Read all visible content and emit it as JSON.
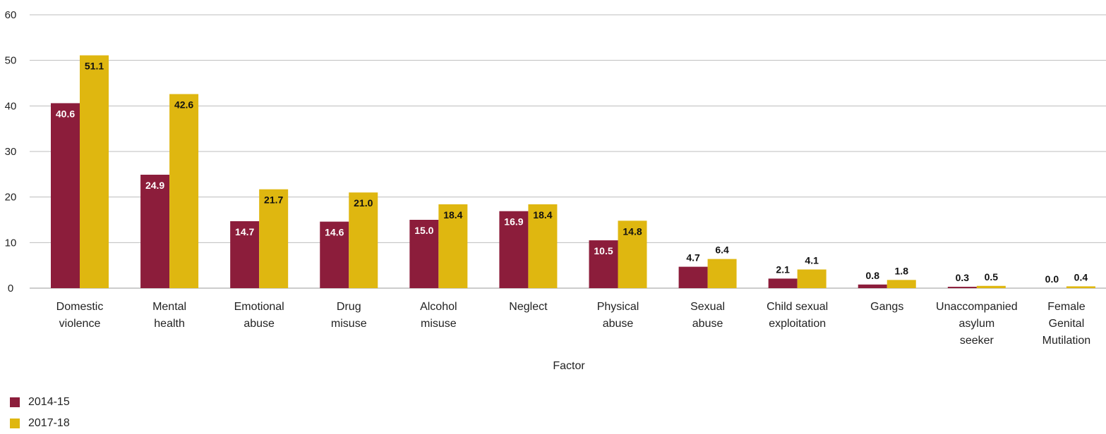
{
  "chart_data": {
    "type": "bar",
    "title": "",
    "xlabel": "Factor",
    "ylabel": "",
    "ylim": [
      0,
      60
    ],
    "yticks": [
      0,
      10,
      20,
      30,
      40,
      50,
      60
    ],
    "grid": true,
    "legend_position": "bottom-left",
    "categories": [
      [
        "Domestic",
        "violence"
      ],
      [
        "Mental",
        "health"
      ],
      [
        "Emotional",
        "abuse"
      ],
      [
        "Drug",
        "misuse"
      ],
      [
        "Alcohol",
        "misuse"
      ],
      [
        "Neglect"
      ],
      [
        "Physical",
        "abuse"
      ],
      [
        "Sexual",
        "abuse"
      ],
      [
        "Child sexual",
        "exploitation"
      ],
      [
        "Gangs"
      ],
      [
        "Unaccompanied",
        "asylum",
        "seeker"
      ],
      [
        "Female",
        "Genital",
        "Mutilation"
      ]
    ],
    "series": [
      {
        "name": "2014-15",
        "color": "#8c1d3b",
        "values": [
          40.6,
          24.9,
          14.7,
          14.6,
          15.0,
          16.9,
          10.5,
          4.7,
          2.1,
          0.8,
          0.3,
          0.0
        ]
      },
      {
        "name": "2017-18",
        "color": "#dfb710",
        "values": [
          51.1,
          42.6,
          21.7,
          21.0,
          18.4,
          18.4,
          14.8,
          6.4,
          4.1,
          1.8,
          0.5,
          0.4
        ]
      }
    ]
  }
}
